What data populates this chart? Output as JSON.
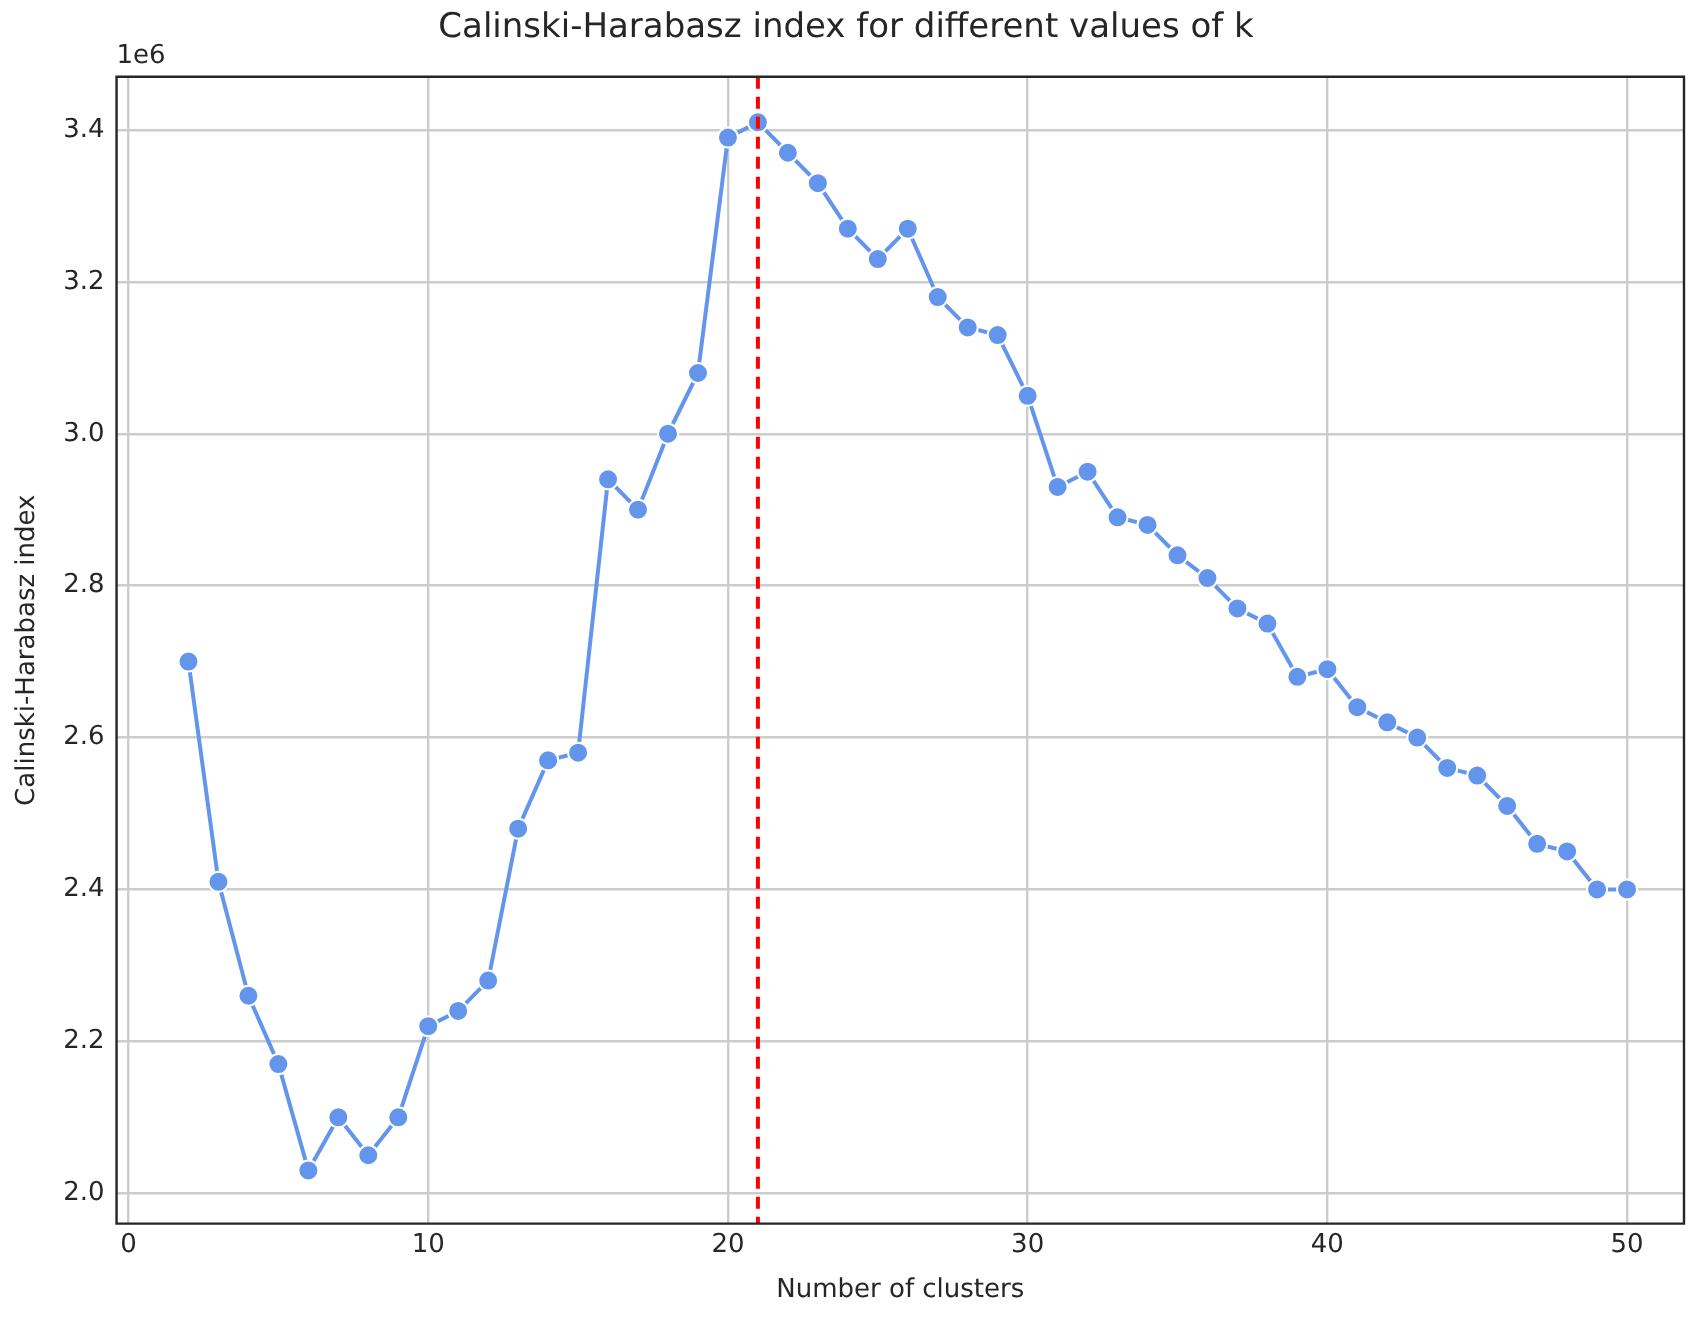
{
  "chart_data": {
    "type": "line",
    "title": "Calinski-Harabasz index for different values of k",
    "xlabel": "Number of clusters",
    "ylabel": "Calinski-Harabasz index",
    "annotations": [
      "1e6"
    ],
    "x": [
      2,
      3,
      4,
      5,
      6,
      7,
      8,
      9,
      10,
      11,
      12,
      13,
      14,
      15,
      16,
      17,
      18,
      19,
      20,
      21,
      22,
      23,
      24,
      25,
      26,
      27,
      28,
      29,
      30,
      31,
      32,
      33,
      34,
      35,
      36,
      37,
      38,
      39,
      40,
      41,
      42,
      43,
      44,
      45,
      46,
      47,
      48,
      49,
      50
    ],
    "series": [
      {
        "color": "#6495ed",
        "values": [
          2.7,
          2.41,
          2.26,
          2.17,
          2.03,
          2.1,
          2.05,
          2.1,
          2.22,
          2.24,
          2.28,
          2.48,
          2.57,
          2.58,
          2.94,
          2.9,
          3.0,
          3.08,
          3.39,
          3.41,
          3.37,
          3.33,
          3.27,
          3.23,
          3.27,
          3.18,
          3.14,
          3.13,
          3.05,
          2.93,
          2.95,
          2.89,
          2.88,
          2.84,
          2.81,
          2.77,
          2.75,
          2.68,
          2.69,
          2.64,
          2.62,
          2.6,
          2.56,
          2.55,
          2.51,
          2.46,
          2.45,
          2.4,
          2.4
        ]
      }
    ],
    "xlim": [
      -0.4,
      51.9
    ],
    "xticks": [
      0,
      10,
      20,
      30,
      40,
      50
    ],
    "ylim": [
      1.96,
      3.47
    ],
    "yticks": [
      {
        "value": 2,
        "label": "2.0"
      },
      {
        "value": 2.2,
        "label": "2.2"
      },
      {
        "value": 2.4,
        "label": "2.4"
      },
      {
        "value": 2.6,
        "label": "2.6"
      },
      {
        "value": 2.8,
        "label": "2.8"
      },
      {
        "value": 3,
        "label": "3.0"
      },
      {
        "value": 3.2,
        "label": "3.2"
      },
      {
        "value": 3.4,
        "label": "3.4"
      }
    ],
    "ref_lines": [
      {
        "axis": "x",
        "value": 21,
        "color": "#ff0000",
        "line_style": "dashed"
      }
    ],
    "grid": true,
    "marker": "circle",
    "line_style": "solid",
    "legend": false
  }
}
